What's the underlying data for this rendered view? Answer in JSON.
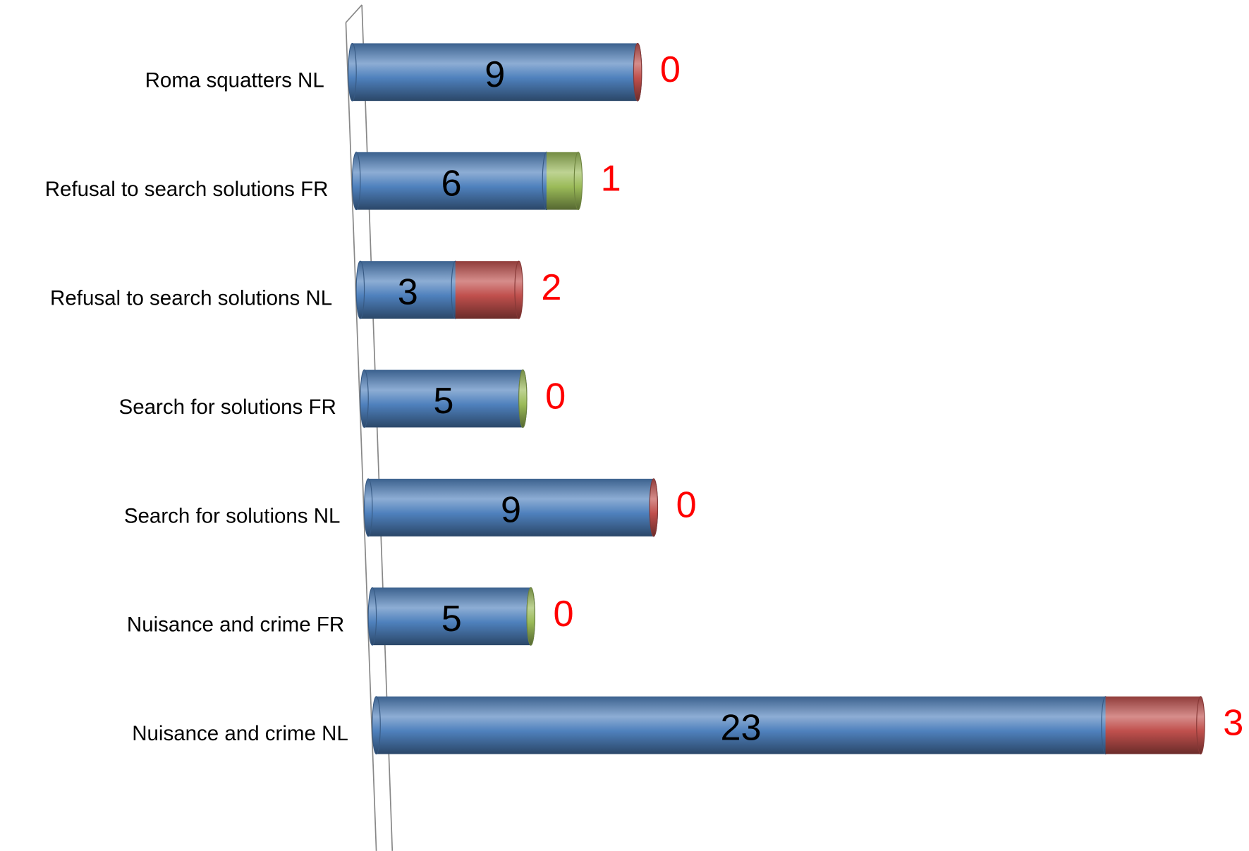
{
  "chart_data": {
    "type": "stacked-bar-horizontal",
    "categories": [
      "Roma squatters NL",
      "Refusal to search solutions FR",
      "Refusal to search solutions NL",
      "Search for solutions FR",
      "Search for solutions NL",
      "Nuisance and crime FR",
      "Nuisance and crime NL"
    ],
    "series": [
      {
        "color": "#4f81bd",
        "values": [
          9,
          6,
          3,
          5,
          9,
          5,
          23
        ]
      },
      {
        "colors": [
          "#c0504d",
          "#9bbb59",
          "#c0504d",
          "#9bbb59",
          "#c0504d",
          "#9bbb59",
          "#c0504d"
        ],
        "values": [
          0,
          1,
          2,
          0,
          0,
          0,
          3
        ]
      }
    ],
    "xlim": [
      0,
      27
    ]
  }
}
